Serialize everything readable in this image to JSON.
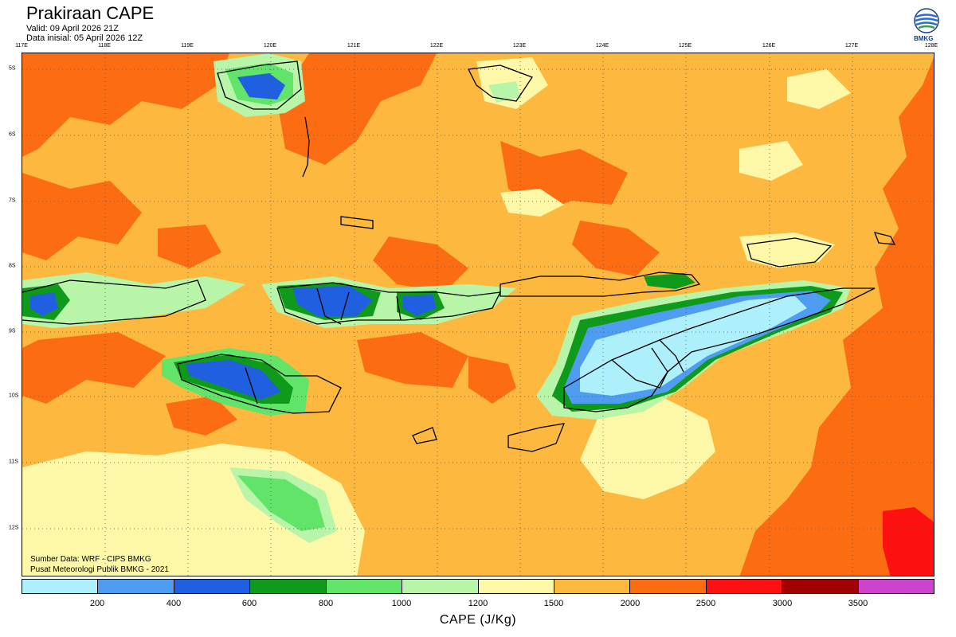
{
  "header": {
    "title": "Prakiraan CAPE",
    "valid": "Valid: 09 April 2026 21Z",
    "init": "Data inisial: 05 April 2026 12Z",
    "logo_text": "BMKG"
  },
  "axes": {
    "lon_labels": [
      "117E",
      "118E",
      "119E",
      "120E",
      "121E",
      "122E",
      "123E",
      "124E",
      "125E",
      "126E",
      "127E",
      "128E"
    ],
    "lat_labels": [
      "5S",
      "6S",
      "7S",
      "8S",
      "9S",
      "10S",
      "11S",
      "12S"
    ]
  },
  "footer": {
    "source": "Sumber Data: WRF - CIPS BMKG",
    "center": "Pusat Meteorologi Publik BMKG - 2021"
  },
  "colorbar": {
    "title": "CAPE (J/Kg)",
    "colors": [
      "#aeeffc",
      "#4f9df0",
      "#1f5fe0",
      "#0f9a1c",
      "#62e36a",
      "#b8f5a8",
      "#fdf7a8",
      "#fdb93f",
      "#fc6c12",
      "#fc1010",
      "#a00000",
      "#cc44cc"
    ],
    "labels": [
      "200",
      "400",
      "600",
      "800",
      "1000",
      "1200",
      "1500",
      "2000",
      "2500",
      "3000",
      "3500"
    ]
  },
  "colors": {
    "ocean_base": "#fdb93f",
    "high": "#fc6c12"
  }
}
